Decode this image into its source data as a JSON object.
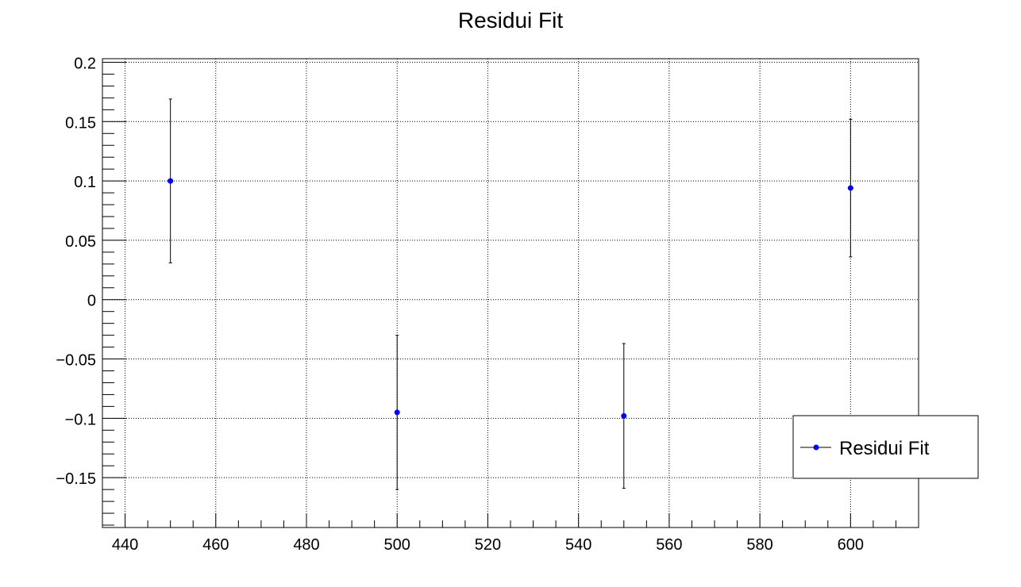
{
  "chart_data": {
    "type": "scatter",
    "title": "Residui Fit",
    "xlabel": "",
    "ylabel": "",
    "xlim": [
      435,
      615
    ],
    "ylim": [
      -0.192,
      0.203
    ],
    "grid": true,
    "x_ticks": [
      440,
      460,
      480,
      500,
      520,
      540,
      560,
      580,
      600
    ],
    "x_tick_labels": [
      "440",
      "460",
      "480",
      "500",
      "520",
      "540",
      "560",
      "580",
      "600"
    ],
    "y_ticks": [
      0.2,
      0.15,
      0.1,
      0.05,
      0,
      -0.05,
      -0.1,
      -0.15
    ],
    "y_tick_labels": [
      "0.2",
      "0.15",
      "0.1",
      "0.05",
      "0",
      "−0.05",
      "−0.1",
      "−0.15"
    ],
    "series": [
      {
        "name": "Residui Fit",
        "color": "#0000ff",
        "points": [
          {
            "x": 450,
            "y": 0.1,
            "err": 0.069
          },
          {
            "x": 500,
            "y": -0.095,
            "err": 0.065
          },
          {
            "x": 550,
            "y": -0.098,
            "err": 0.061
          },
          {
            "x": 600,
            "y": 0.094,
            "err": 0.058
          }
        ]
      }
    ],
    "legend": {
      "position": "bottom-right",
      "entries": [
        "Residui Fit"
      ]
    }
  }
}
